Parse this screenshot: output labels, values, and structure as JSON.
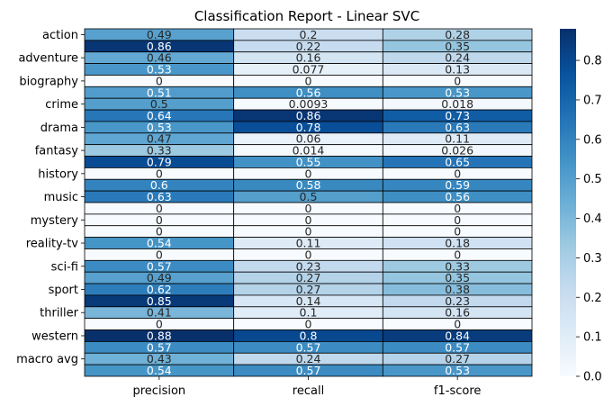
{
  "chart_data": {
    "type": "heatmap",
    "title": "Classification Report - Linear SVC",
    "columns": [
      "precision",
      "recall",
      "f1-score"
    ],
    "rows": [
      {
        "label": "action",
        "values": [
          0.49,
          0.2,
          0.28
        ]
      },
      {
        "label": "",
        "values": [
          0.86,
          0.22,
          0.35
        ]
      },
      {
        "label": "adventure",
        "values": [
          0.46,
          0.16,
          0.24
        ]
      },
      {
        "label": "",
        "values": [
          0.53,
          0.077,
          0.13
        ]
      },
      {
        "label": "biography",
        "values": [
          0,
          0,
          0
        ]
      },
      {
        "label": "",
        "values": [
          0.51,
          0.56,
          0.53
        ]
      },
      {
        "label": "crime",
        "values": [
          0.5,
          0.0093,
          0.018
        ]
      },
      {
        "label": "",
        "values": [
          0.64,
          0.86,
          0.73
        ]
      },
      {
        "label": "drama",
        "values": [
          0.53,
          0.78,
          0.63
        ]
      },
      {
        "label": "",
        "values": [
          0.47,
          0.06,
          0.11
        ]
      },
      {
        "label": "fantasy",
        "values": [
          0.33,
          0.014,
          0.026
        ]
      },
      {
        "label": "",
        "values": [
          0.79,
          0.55,
          0.65
        ]
      },
      {
        "label": "history",
        "values": [
          0,
          0,
          0
        ]
      },
      {
        "label": "",
        "values": [
          0.6,
          0.58,
          0.59
        ]
      },
      {
        "label": "music",
        "values": [
          0.63,
          0.5,
          0.56
        ]
      },
      {
        "label": "",
        "values": [
          0,
          0,
          0
        ]
      },
      {
        "label": "mystery",
        "values": [
          0,
          0,
          0
        ]
      },
      {
        "label": "",
        "values": [
          0,
          0,
          0
        ]
      },
      {
        "label": "reality-tv",
        "values": [
          0.54,
          0.11,
          0.18
        ]
      },
      {
        "label": "",
        "values": [
          0,
          0,
          0
        ]
      },
      {
        "label": "sci-fi",
        "values": [
          0.57,
          0.23,
          0.33
        ]
      },
      {
        "label": "",
        "values": [
          0.49,
          0.27,
          0.35
        ]
      },
      {
        "label": "sport",
        "values": [
          0.62,
          0.27,
          0.38
        ]
      },
      {
        "label": "",
        "values": [
          0.85,
          0.14,
          0.23
        ]
      },
      {
        "label": "thriller",
        "values": [
          0.41,
          0.1,
          0.16
        ]
      },
      {
        "label": "",
        "values": [
          0,
          0,
          0
        ]
      },
      {
        "label": "western",
        "values": [
          0.88,
          0.8,
          0.84
        ]
      },
      {
        "label": "",
        "values": [
          0.57,
          0.57,
          0.57
        ]
      },
      {
        "label": "macro avg",
        "values": [
          0.43,
          0.24,
          0.27
        ]
      },
      {
        "label": "",
        "values": [
          0.54,
          0.57,
          0.53
        ]
      }
    ],
    "vmin": 0,
    "vmax": 0.88,
    "colormap": "Blues",
    "cell_edge_color": "#000000",
    "colorbar": {
      "ticks": [
        0.0,
        0.1,
        0.2,
        0.3,
        0.4,
        0.5,
        0.6,
        0.7,
        0.8
      ],
      "tick_labels": [
        "0.0",
        "0.1",
        "0.2",
        "0.3",
        "0.4",
        "0.5",
        "0.6",
        "0.7",
        "0.8"
      ]
    },
    "xlabel": "",
    "ylabel": ""
  }
}
